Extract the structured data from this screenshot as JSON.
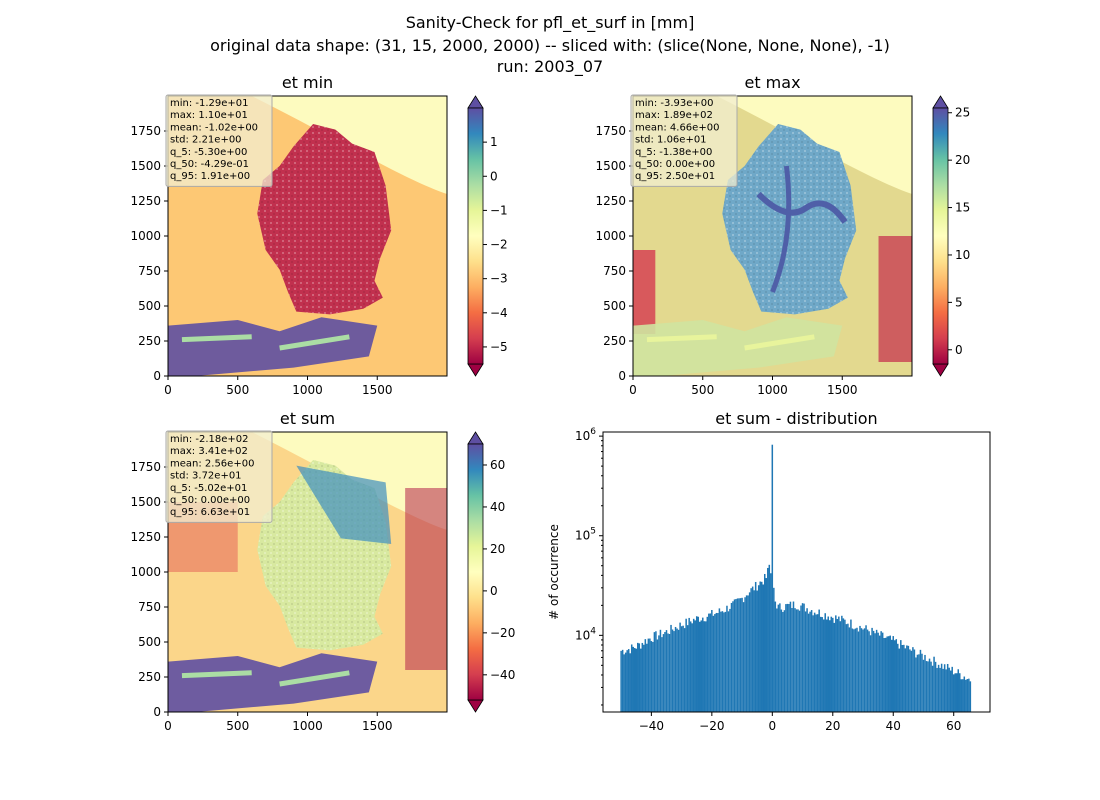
{
  "suptitle": {
    "line1": "Sanity-Check for pfl_et_surf in [mm]",
    "line2": "original data shape: (31, 15, 2000, 2000) -- sliced with: (slice(None, None, None), -1)",
    "line3": "run: 2003_07"
  },
  "chart_data": [
    {
      "type": "heatmap",
      "title": "et min",
      "xlim": [
        0,
        2000
      ],
      "ylim": [
        0,
        2000
      ],
      "xticks": [
        0,
        500,
        1000,
        1500
      ],
      "yticks": [
        0,
        250,
        500,
        750,
        1000,
        1250,
        1500,
        1750
      ],
      "colormap": "Spectral",
      "colorbar": {
        "min": -5.5,
        "max": 2.0,
        "ticks": [
          1,
          0,
          -1,
          -2,
          -3,
          -4,
          -5
        ],
        "extend": "both"
      },
      "stats": [
        "min: -1.29e+01",
        "max: 1.10e+01",
        "mean: -1.02e+00",
        "std: 2.21e+00",
        "q_5: -5.30e+00",
        "q_50: -4.29e-01",
        "q_95: 1.91e+00"
      ]
    },
    {
      "type": "heatmap",
      "title": "et max",
      "xlim": [
        0,
        2000
      ],
      "ylim": [
        0,
        2000
      ],
      "xticks": [
        0,
        500,
        1000,
        1500
      ],
      "yticks": [
        0,
        250,
        500,
        750,
        1000,
        1250,
        1500,
        1750
      ],
      "colormap": "Spectral",
      "colorbar": {
        "min": -1.5,
        "max": 25.5,
        "ticks": [
          25,
          20,
          15,
          10,
          5,
          0
        ],
        "extend": "both"
      },
      "stats": [
        "min: -3.93e+00",
        "max: 1.89e+02",
        "mean: 4.66e+00",
        "std: 1.06e+01",
        "q_5: -1.38e+00",
        "q_50: 0.00e+00",
        "q_95: 2.50e+01"
      ]
    },
    {
      "type": "heatmap",
      "title": "et sum",
      "xlim": [
        0,
        2000
      ],
      "ylim": [
        0,
        2000
      ],
      "xticks": [
        0,
        500,
        1000,
        1500
      ],
      "yticks": [
        0,
        250,
        500,
        750,
        1000,
        1250,
        1500,
        1750
      ],
      "colormap": "Spectral",
      "colorbar": {
        "min": -52,
        "max": 70,
        "ticks": [
          60,
          40,
          20,
          0,
          -20,
          -40
        ],
        "extend": "both"
      },
      "stats": [
        "min: -2.18e+02",
        "max: 3.41e+02",
        "mean: 2.56e+00",
        "std: 3.72e+01",
        "q_5: -5.02e+01",
        "q_50: 0.00e+00",
        "q_95: 6.63e+01"
      ]
    },
    {
      "type": "bar",
      "title": "et sum - distribution",
      "ylabel": "# of occurrence",
      "ylog": true,
      "xlim": [
        -56,
        72
      ],
      "ylim": [
        1700,
        1100000
      ],
      "xticks": [
        -40,
        -20,
        0,
        20,
        40,
        60
      ],
      "yticks": [
        {
          "value": 10000,
          "label": "10^4"
        },
        {
          "value": 100000,
          "label": "10^5"
        },
        {
          "value": 1000000,
          "label": "10^6"
        }
      ],
      "bar_color": "#1f77b4",
      "bin_width": 0.5,
      "series": [
        {
          "x": [
            -50,
            -48,
            -46,
            -44,
            -42,
            -40,
            -38,
            -36,
            -34,
            -32,
            -30,
            -28,
            -26,
            -24,
            -22,
            -20,
            -18,
            -16,
            -14,
            -12,
            -10,
            -8,
            -6,
            -4,
            -2,
            -1,
            -0.5,
            0,
            0.5,
            1,
            2,
            4,
            6,
            8,
            10,
            12,
            14,
            16,
            18,
            20,
            22,
            24,
            26,
            28,
            30,
            32,
            34,
            36,
            38,
            40,
            42,
            44,
            46,
            48,
            50,
            52,
            54,
            56,
            58,
            60,
            62,
            64,
            65.5
          ],
          "y": [
            7000,
            7200,
            7500,
            8000,
            8800,
            9500,
            10000,
            10500,
            11200,
            12000,
            12800,
            13500,
            14300,
            15000,
            15500,
            16200,
            17000,
            18000,
            19500,
            21000,
            23500,
            27000,
            30000,
            34000,
            38000,
            50000,
            42000,
            820000,
            30000,
            22000,
            19000,
            19500,
            20000,
            20500,
            19500,
            18500,
            17500,
            16800,
            16000,
            15300,
            14600,
            13900,
            13200,
            12500,
            11800,
            11200,
            10500,
            9900,
            9300,
            8800,
            8200,
            7600,
            7100,
            6600,
            6200,
            5800,
            5400,
            5000,
            4700,
            4400,
            4100,
            3800,
            3600
          ]
        }
      ]
    }
  ]
}
